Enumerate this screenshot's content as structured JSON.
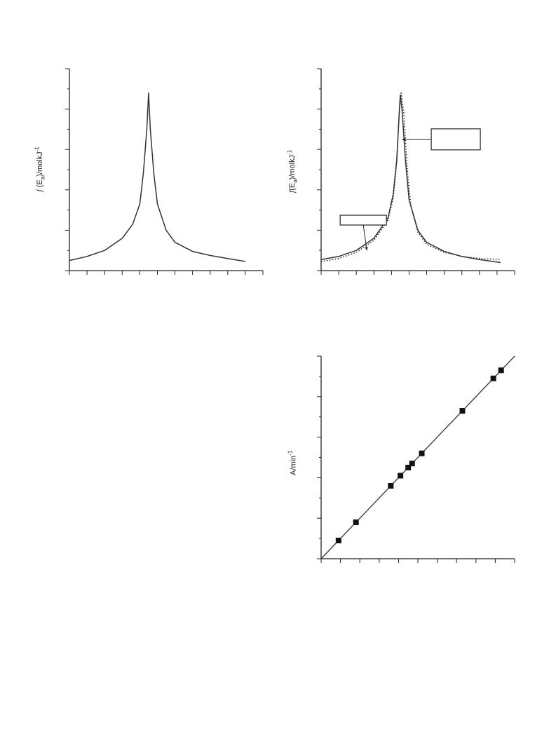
{
  "chart_data": [
    {
      "type": "line",
      "ylabel_italic": "f",
      "ylabel_open": " (E",
      "ylabel_sub": "a",
      "ylabel_close": ")/molkJ",
      "ylabel_sup": "-1",
      "xlim": [
        0,
        11
      ],
      "ylim": [
        0,
        10
      ],
      "x_ticks": 11,
      "y_ticks": 10,
      "series": [
        {
          "style": "solid",
          "x": [
            0,
            1,
            2,
            3,
            3.6,
            4,
            4.2,
            4.4,
            4.5,
            4.6,
            4.8,
            5,
            5.5,
            6,
            7,
            8,
            9,
            10
          ],
          "y": [
            0.5,
            0.7,
            1.0,
            1.6,
            2.3,
            3.3,
            4.8,
            7.0,
            8.8,
            7.0,
            4.8,
            3.3,
            2.0,
            1.4,
            0.95,
            0.75,
            0.6,
            0.45
          ]
        }
      ]
    },
    {
      "type": "line",
      "ylabel_italic": "f",
      "ylabel_open": "(E",
      "ylabel_sub": "a",
      "ylabel_close": ")/molkJ",
      "ylabel_sup": "-1",
      "xlim": [
        0,
        11
      ],
      "ylim": [
        0,
        10
      ],
      "x_ticks": 11,
      "y_ticks": 10,
      "series": [
        {
          "style": "solid",
          "x": [
            0,
            1,
            2,
            3,
            3.8,
            4.1,
            4.3,
            4.45,
            4.5,
            4.6,
            4.8,
            5,
            5.5,
            6,
            7,
            8,
            9,
            10.2
          ],
          "y": [
            0.55,
            0.7,
            1.0,
            1.6,
            2.6,
            3.8,
            5.5,
            8.0,
            8.7,
            8.0,
            5.4,
            3.5,
            2.0,
            1.4,
            0.95,
            0.7,
            0.55,
            0.4
          ]
        },
        {
          "style": "dotted",
          "x": [
            0,
            1,
            2,
            3,
            3.8,
            4.1,
            4.3,
            4.45,
            4.55,
            4.7,
            4.9,
            5.1,
            5.5,
            6,
            7,
            8,
            9,
            10.2
          ],
          "y": [
            0.45,
            0.6,
            0.9,
            1.5,
            2.5,
            3.6,
            5.4,
            8.0,
            8.8,
            7.8,
            5.0,
            3.2,
            1.9,
            1.3,
            0.9,
            0.7,
            0.6,
            0.55
          ]
        }
      ],
      "annotations": [
        {
          "text": "",
          "points_to": [
            4.6,
            6.5
          ],
          "label_at": [
            6.5,
            6.5
          ]
        },
        {
          "text": "",
          "points_to": [
            2.6,
            1.0
          ],
          "label_at": [
            2.0,
            2.5
          ]
        }
      ]
    },
    {
      "type": "scatter",
      "ylabel_open": "A/min",
      "ylabel_sup": "-1",
      "xlim": [
        0,
        10
      ],
      "ylim": [
        0,
        10
      ],
      "x_ticks": 10,
      "y_ticks": 10,
      "trendline": {
        "x": [
          0,
          10
        ],
        "y": [
          0,
          10
        ]
      },
      "points": {
        "x": [
          0.9,
          1.8,
          3.6,
          4.1,
          4.5,
          4.7,
          5.2,
          7.3,
          8.9,
          9.3
        ],
        "y": [
          0.9,
          1.8,
          3.6,
          4.1,
          4.5,
          4.7,
          5.2,
          7.3,
          8.9,
          9.3
        ]
      }
    }
  ]
}
